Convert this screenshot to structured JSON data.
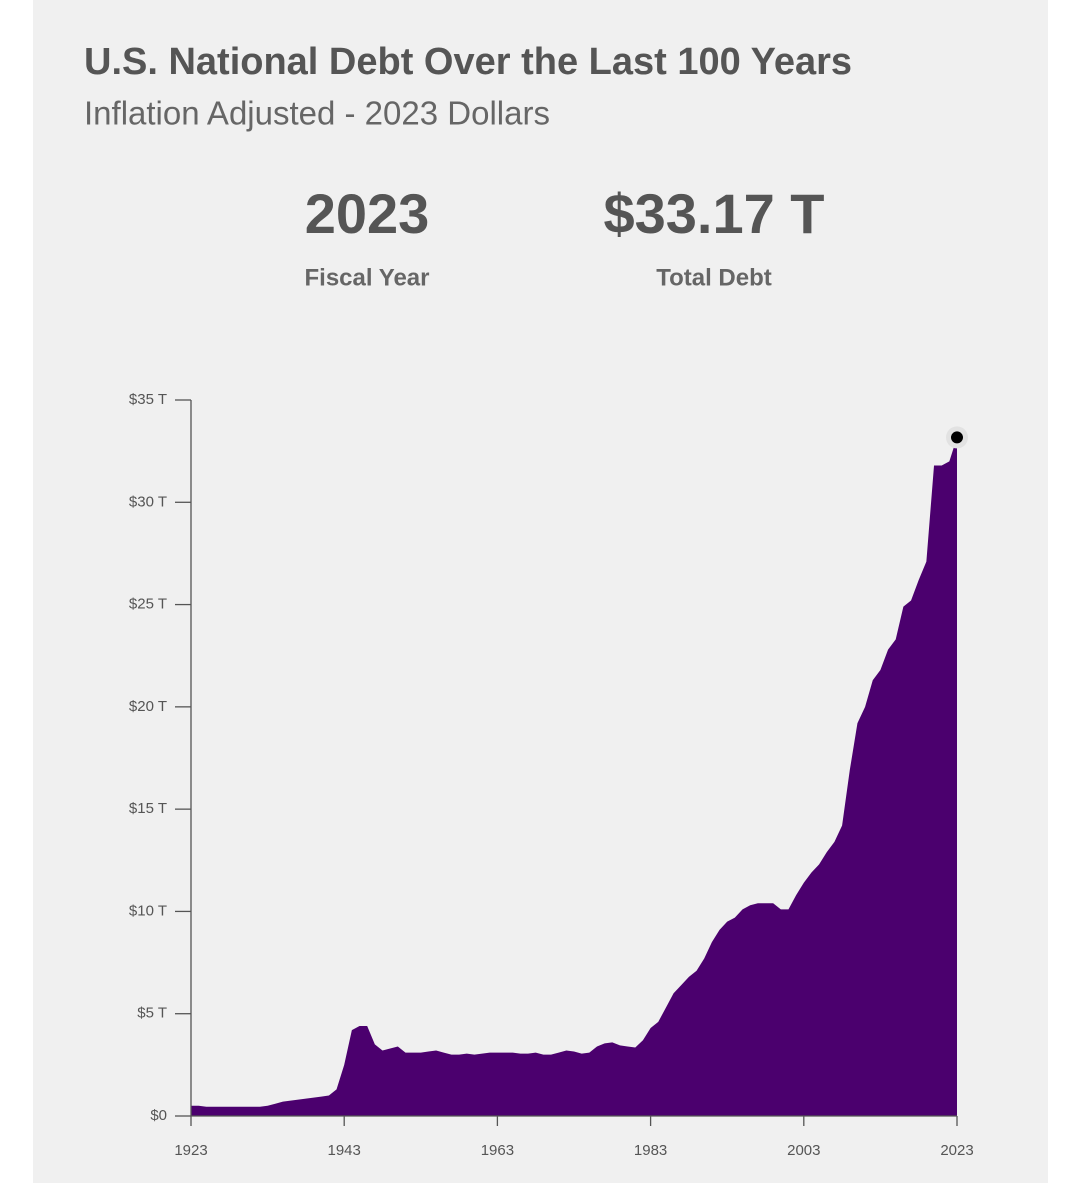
{
  "chart_data": {
    "type": "area",
    "title": "U.S. National Debt Over the Last 100 Years",
    "subtitle": "Inflation Adjusted - 2023 Dollars",
    "stats": [
      {
        "value": "2023",
        "label": "Fiscal Year"
      },
      {
        "value": "$33.17 T",
        "label": "Total Debt"
      }
    ],
    "color": "#4b006e",
    "x": [
      1923,
      1924,
      1925,
      1926,
      1927,
      1928,
      1929,
      1930,
      1931,
      1932,
      1933,
      1934,
      1935,
      1936,
      1937,
      1938,
      1939,
      1940,
      1941,
      1942,
      1943,
      1944,
      1945,
      1946,
      1947,
      1948,
      1949,
      1950,
      1951,
      1952,
      1953,
      1954,
      1955,
      1956,
      1957,
      1958,
      1959,
      1960,
      1961,
      1962,
      1963,
      1964,
      1965,
      1966,
      1967,
      1968,
      1969,
      1970,
      1971,
      1972,
      1973,
      1974,
      1975,
      1976,
      1977,
      1978,
      1979,
      1980,
      1981,
      1982,
      1983,
      1984,
      1985,
      1986,
      1987,
      1988,
      1989,
      1990,
      1991,
      1992,
      1993,
      1994,
      1995,
      1996,
      1997,
      1998,
      1999,
      2000,
      2001,
      2002,
      2003,
      2004,
      2005,
      2006,
      2007,
      2008,
      2009,
      2010,
      2011,
      2012,
      2013,
      2014,
      2015,
      2016,
      2017,
      2018,
      2019,
      2020,
      2021,
      2022,
      2023
    ],
    "values": [
      0.5,
      0.5,
      0.45,
      0.45,
      0.45,
      0.45,
      0.45,
      0.45,
      0.45,
      0.45,
      0.5,
      0.6,
      0.7,
      0.75,
      0.8,
      0.85,
      0.9,
      0.95,
      1.0,
      1.3,
      2.5,
      4.2,
      4.4,
      4.4,
      3.5,
      3.2,
      3.3,
      3.4,
      3.1,
      3.1,
      3.1,
      3.15,
      3.2,
      3.1,
      3.0,
      3.0,
      3.05,
      3.0,
      3.05,
      3.1,
      3.1,
      3.1,
      3.1,
      3.05,
      3.05,
      3.1,
      3.0,
      3.0,
      3.1,
      3.2,
      3.15,
      3.05,
      3.1,
      3.4,
      3.55,
      3.6,
      3.45,
      3.4,
      3.35,
      3.7,
      4.3,
      4.6,
      5.3,
      6.0,
      6.4,
      6.8,
      7.1,
      7.7,
      8.5,
      9.1,
      9.5,
      9.7,
      10.1,
      10.3,
      10.4,
      10.4,
      10.4,
      10.1,
      10.1,
      10.8,
      11.4,
      11.9,
      12.3,
      12.9,
      13.4,
      14.2,
      16.9,
      19.2,
      20.0,
      21.3,
      21.8,
      22.8,
      23.3,
      24.9,
      25.2,
      26.2,
      27.1,
      31.8,
      31.8,
      32.0,
      33.17
    ],
    "xlim": [
      1923,
      2023
    ],
    "xticks": [
      1923,
      1943,
      1963,
      1983,
      2003,
      2023
    ],
    "ylim": [
      0,
      35
    ],
    "yticks": [
      {
        "value": 0,
        "label": "$0"
      },
      {
        "value": 5,
        "label": "$5 T"
      },
      {
        "value": 10,
        "label": "$10 T"
      },
      {
        "value": 15,
        "label": "$15 T"
      },
      {
        "value": 20,
        "label": "$20 T"
      },
      {
        "value": 25,
        "label": "$25 T"
      },
      {
        "value": 30,
        "label": "$30 T"
      },
      {
        "value": 35,
        "label": "$35 T"
      }
    ]
  }
}
